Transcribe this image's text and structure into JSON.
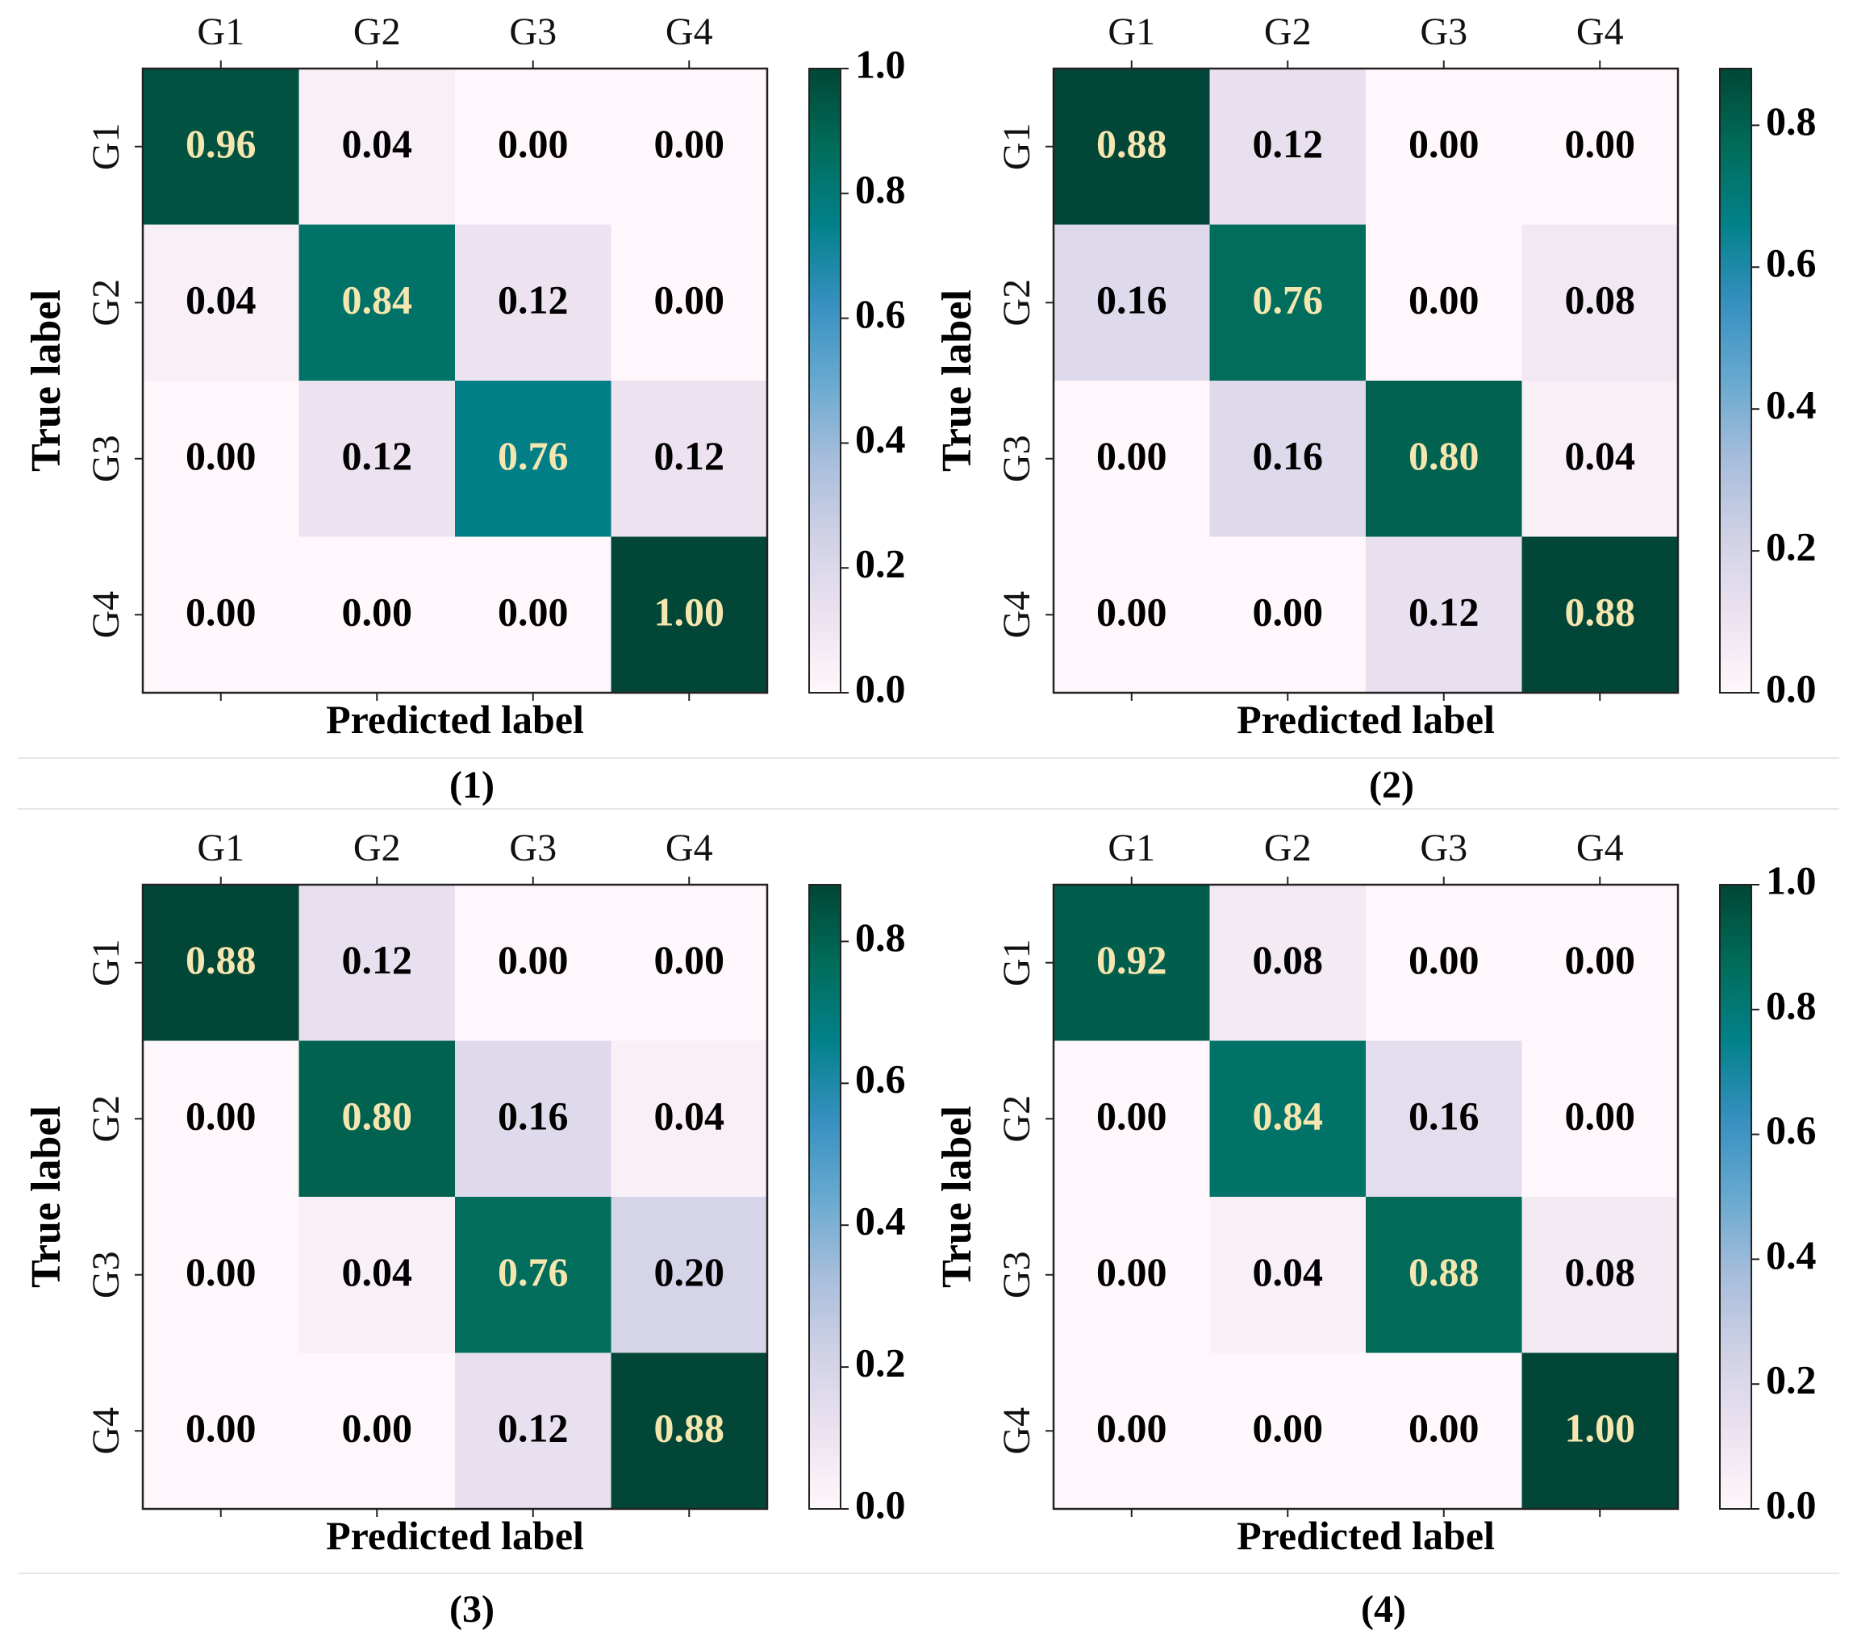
{
  "chart_data": [
    {
      "type": "heatmap",
      "caption": "(1)",
      "xlabel": "Predicted label",
      "ylabel": "True label",
      "x_categories": [
        "G1",
        "G2",
        "G3",
        "G4"
      ],
      "y_categories": [
        "G1",
        "G2",
        "G3",
        "G4"
      ],
      "values": [
        [
          0.96,
          0.04,
          0.0,
          0.0
        ],
        [
          0.04,
          0.84,
          0.12,
          0.0
        ],
        [
          0.0,
          0.12,
          0.76,
          0.12
        ],
        [
          0.0,
          0.0,
          0.0,
          1.0
        ]
      ],
      "cell_labels": [
        [
          "0.96",
          "0.04",
          "0.00",
          "0.00"
        ],
        [
          "0.04",
          "0.84",
          "0.12",
          "0.00"
        ],
        [
          "0.00",
          "0.12",
          "0.76",
          "0.12"
        ],
        [
          "0.00",
          "0.00",
          "0.00",
          "1.00"
        ]
      ],
      "colorbar": {
        "range": [
          0.0,
          1.0
        ],
        "ticks": [
          0.0,
          0.2,
          0.4,
          0.6,
          0.8,
          1.0
        ],
        "tick_labels": [
          "0.0",
          "0.2",
          "0.4",
          "0.6",
          "0.8",
          "1.0"
        ]
      }
    },
    {
      "type": "heatmap",
      "caption": "(2)",
      "xlabel": "Predicted label",
      "ylabel": "True label",
      "x_categories": [
        "G1",
        "G2",
        "G3",
        "G4"
      ],
      "y_categories": [
        "G1",
        "G2",
        "G3",
        "G4"
      ],
      "values": [
        [
          0.88,
          0.12,
          0.0,
          0.0
        ],
        [
          0.16,
          0.76,
          0.0,
          0.08
        ],
        [
          0.0,
          0.16,
          0.8,
          0.04
        ],
        [
          0.0,
          0.0,
          0.12,
          0.88
        ]
      ],
      "cell_labels": [
        [
          "0.88",
          "0.12",
          "0.00",
          "0.00"
        ],
        [
          "0.16",
          "0.76",
          "0.00",
          "0.08"
        ],
        [
          "0.00",
          "0.16",
          "0.80",
          "0.04"
        ],
        [
          "0.00",
          "0.00",
          "0.12",
          "0.88"
        ]
      ],
      "colorbar": {
        "range": [
          0.0,
          0.88
        ],
        "ticks": [
          0.0,
          0.2,
          0.4,
          0.6,
          0.8
        ],
        "tick_labels": [
          "0.0",
          "0.2",
          "0.4",
          "0.6",
          "0.8"
        ]
      }
    },
    {
      "type": "heatmap",
      "caption": "(3)",
      "xlabel": "Predicted label",
      "ylabel": "True label",
      "x_categories": [
        "G1",
        "G2",
        "G3",
        "G4"
      ],
      "y_categories": [
        "G1",
        "G2",
        "G3",
        "G4"
      ],
      "values": [
        [
          0.88,
          0.12,
          0.0,
          0.0
        ],
        [
          0.0,
          0.8,
          0.16,
          0.04
        ],
        [
          0.0,
          0.04,
          0.76,
          0.2
        ],
        [
          0.0,
          0.0,
          0.12,
          0.88
        ]
      ],
      "cell_labels": [
        [
          "0.88",
          "0.12",
          "0.00",
          "0.00"
        ],
        [
          "0.00",
          "0.80",
          "0.16",
          "0.04"
        ],
        [
          "0.00",
          "0.04",
          "0.76",
          "0.20"
        ],
        [
          "0.00",
          "0.00",
          "0.12",
          "0.88"
        ]
      ],
      "colorbar": {
        "range": [
          0.0,
          0.88
        ],
        "ticks": [
          0.0,
          0.2,
          0.4,
          0.6,
          0.8
        ],
        "tick_labels": [
          "0.0",
          "0.2",
          "0.4",
          "0.6",
          "0.8"
        ]
      }
    },
    {
      "type": "heatmap",
      "caption": "(4)",
      "xlabel": "Predicted label",
      "ylabel": "True label",
      "x_categories": [
        "G1",
        "G2",
        "G3",
        "G4"
      ],
      "y_categories": [
        "G1",
        "G2",
        "G3",
        "G4"
      ],
      "values": [
        [
          0.92,
          0.08,
          0.0,
          0.0
        ],
        [
          0.0,
          0.84,
          0.16,
          0.0
        ],
        [
          0.0,
          0.04,
          0.88,
          0.08
        ],
        [
          0.0,
          0.0,
          0.0,
          1.0
        ]
      ],
      "cell_labels": [
        [
          "0.92",
          "0.08",
          "0.00",
          "0.00"
        ],
        [
          "0.00",
          "0.84",
          "0.16",
          "0.00"
        ],
        [
          "0.00",
          "0.04",
          "0.88",
          "0.08"
        ],
        [
          "0.00",
          "0.00",
          "0.00",
          "1.00"
        ]
      ],
      "colorbar": {
        "range": [
          0.0,
          1.0
        ],
        "ticks": [
          0.0,
          0.2,
          0.4,
          0.6,
          0.8,
          1.0
        ],
        "tick_labels": [
          "0.0",
          "0.2",
          "0.4",
          "0.6",
          "0.8",
          "1.0"
        ]
      }
    }
  ],
  "colormap": {
    "name": "PuBuGn",
    "stops": [
      "#fff7fb",
      "#ece2f0",
      "#d0d1e6",
      "#a6bddb",
      "#67a9cf",
      "#3690c0",
      "#02818a",
      "#016c59",
      "#014636"
    ]
  },
  "cell_text_colors": {
    "dark": "#000000",
    "light": "#f5e6b0"
  }
}
